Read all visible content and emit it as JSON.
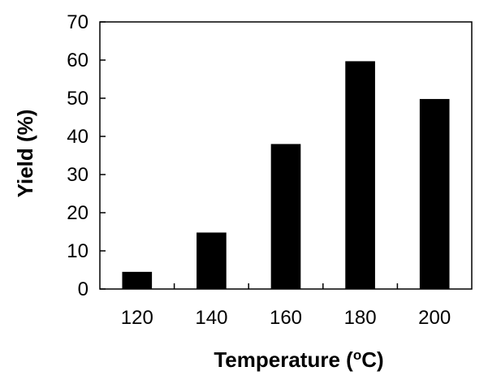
{
  "chart_data": {
    "type": "bar",
    "categories": [
      "120",
      "140",
      "160",
      "180",
      "200"
    ],
    "values": [
      4.5,
      14.8,
      38,
      59.7,
      49.8
    ],
    "title": "",
    "xlabel": {
      "main": "Temperature (",
      "superscript": "o",
      "unit": "C)"
    },
    "ylabel": "Yield (%)",
    "ylim": [
      0,
      70
    ],
    "yticks": [
      0,
      10,
      20,
      30,
      40,
      50,
      60,
      70
    ],
    "grid": false,
    "bar_color": "#000000",
    "axis_color": "#000000"
  }
}
